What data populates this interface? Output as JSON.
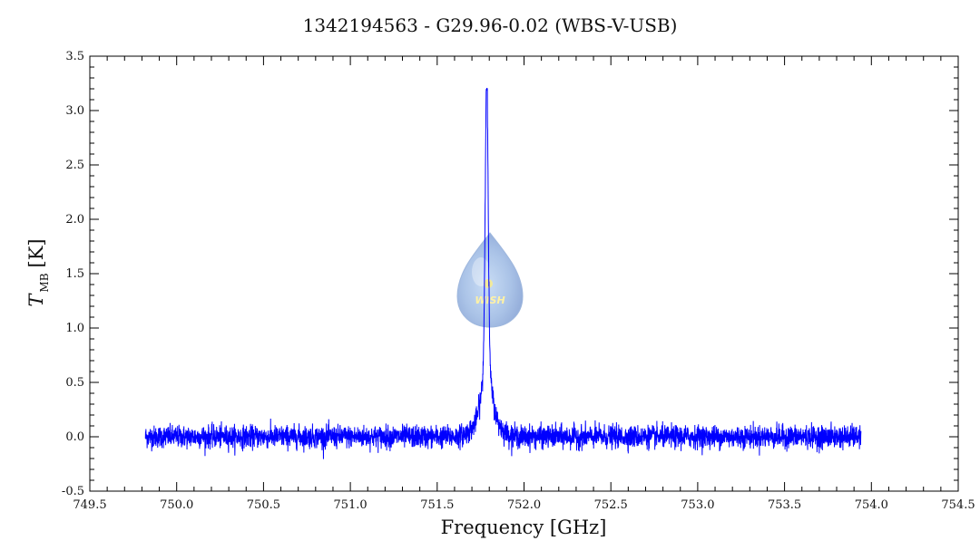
{
  "chart_data": {
    "type": "line",
    "title": "1342194563 - G29.96-0.02 (WBS-V-USB)",
    "xlabel": "Frequency [GHz]",
    "ylabel_main": "T",
    "ylabel_sub": "MB",
    "ylabel_unit": "[K]",
    "xlim": [
      749.5,
      754.5
    ],
    "ylim": [
      -0.5,
      3.5
    ],
    "x_ticks": [
      "749.5",
      "750.0",
      "750.5",
      "751.0",
      "751.5",
      "752.0",
      "752.5",
      "753.0",
      "753.5",
      "754.0",
      "754.5"
    ],
    "y_ticks": [
      "-0.5",
      "0.0",
      "0.5",
      "1.0",
      "1.5",
      "2.0",
      "2.5",
      "3.0",
      "3.5"
    ],
    "grid": false,
    "series": [
      {
        "color": "#0000ff",
        "x_range": [
          749.82,
          753.94
        ],
        "baseline": 0.0,
        "noise_rms": 0.06,
        "line_center": 751.785,
        "line_peak": 3.22,
        "key_points": [
          {
            "x": 749.82,
            "y": 0.0
          },
          {
            "x": 751.3,
            "y": 0.05
          },
          {
            "x": 751.68,
            "y": 0.1
          },
          {
            "x": 751.72,
            "y": 0.35
          },
          {
            "x": 751.76,
            "y": 1.5
          },
          {
            "x": 751.785,
            "y": 3.22
          },
          {
            "x": 751.8,
            "y": 2.5
          },
          {
            "x": 751.83,
            "y": 0.6
          },
          {
            "x": 751.88,
            "y": 0.15
          },
          {
            "x": 752.0,
            "y": 0.02
          },
          {
            "x": 753.94,
            "y": 0.0
          }
        ]
      }
    ],
    "watermark": "WISH"
  }
}
